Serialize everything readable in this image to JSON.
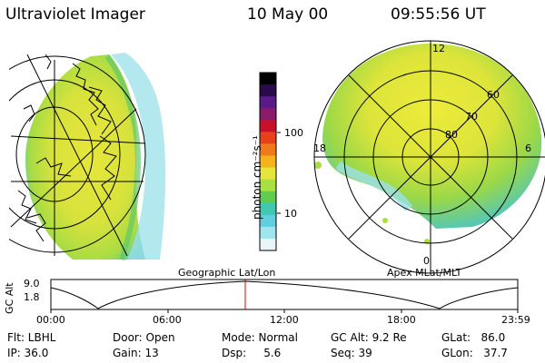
{
  "header": {
    "instrument": "Ultraviolet Imager",
    "date": "10 May 00",
    "time": "09:55:56 UT"
  },
  "colorbar": {
    "label": "photon cm⁻²s⁻¹",
    "ticks": [
      "100",
      "10"
    ],
    "colors": [
      "#000000",
      "#2a0a4a",
      "#5a1a8a",
      "#8a1a6a",
      "#c8102a",
      "#e8401a",
      "#f07a1a",
      "#f5b21a",
      "#e6e63a",
      "#a8e040",
      "#60cc50",
      "#40c8b0",
      "#60d0e0",
      "#a0e4ee",
      "#e8f4f8"
    ]
  },
  "geo_panel": {
    "label": "Geographic Lat/Lon"
  },
  "apex_panel": {
    "label": "Apex  MLat/MLT",
    "mlt_labels": {
      "top": "12",
      "left": "18",
      "right": "6",
      "bottom": "0"
    },
    "mlat_labels": [
      "60",
      "70",
      "80"
    ]
  },
  "timeline": {
    "ylabel": "GC Alt",
    "yticks": [
      "9.0",
      "1.8"
    ],
    "xticks": [
      "00:00",
      "06:00",
      "12:00",
      "18:00",
      "23:59"
    ],
    "marker_fraction": 0.414
  },
  "status": {
    "flt": "Flt: LBHL",
    "ip": "IP: 36.0",
    "door": "Door: Open",
    "gain": "Gain: 13",
    "mode": "Mode: Normal",
    "dsp": "Dsp:     5.6",
    "gcalt": "GC Alt: 9.2 Re",
    "seq": "Seq: 39",
    "glat": "GLat:   86.0",
    "glon": "GLon:   37.7"
  }
}
